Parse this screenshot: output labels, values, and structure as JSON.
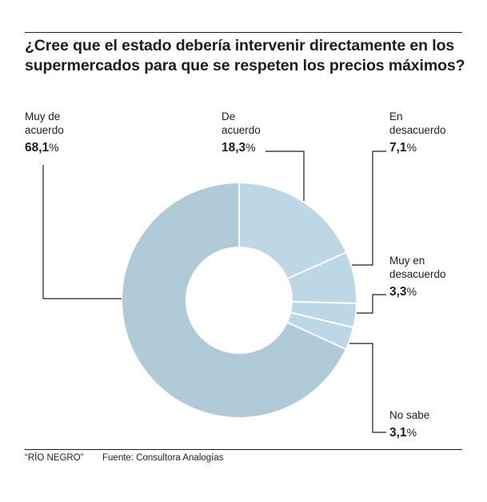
{
  "chart_data": {
    "type": "pie",
    "variant": "donut",
    "title": "¿Cree que el estado debería intervenir directamente en los supermercados para que se respeten los precios máximos?",
    "slices": [
      {
        "label": "De acuerdo",
        "label_lines": [
          "De",
          "acuerdo"
        ],
        "value": 18.3,
        "value_text": "18,3",
        "color": "#bdd8e4"
      },
      {
        "label": "En desacuerdo",
        "label_lines": [
          "En",
          "desacuerdo"
        ],
        "value": 7.1,
        "value_text": "7,1",
        "color": "#bdd8e4"
      },
      {
        "label": "Muy en desacuerdo",
        "label_lines": [
          "Muy en",
          "desacuerdo"
        ],
        "value": 3.3,
        "value_text": "3,3",
        "color": "#bdd8e4"
      },
      {
        "label": "No sabe",
        "label_lines": [
          "No sabe"
        ],
        "value": 3.1,
        "value_text": "3,1",
        "color": "#bdd8e4"
      },
      {
        "label": "Muy de acuerdo",
        "label_lines": [
          "Muy de",
          "acuerdo"
        ],
        "value": 68.1,
        "value_text": "68,1",
        "color": "#b1cad7"
      }
    ],
    "start_angle": "12 o'clock",
    "direction": "clockwise",
    "percent_symbol": "%",
    "separator_color": "#ffffff",
    "connector_color": "#1d1d1b"
  },
  "footer": {
    "credit": "“RÍO NEGRO”",
    "source": "Fuente: Consultora Analogías"
  }
}
